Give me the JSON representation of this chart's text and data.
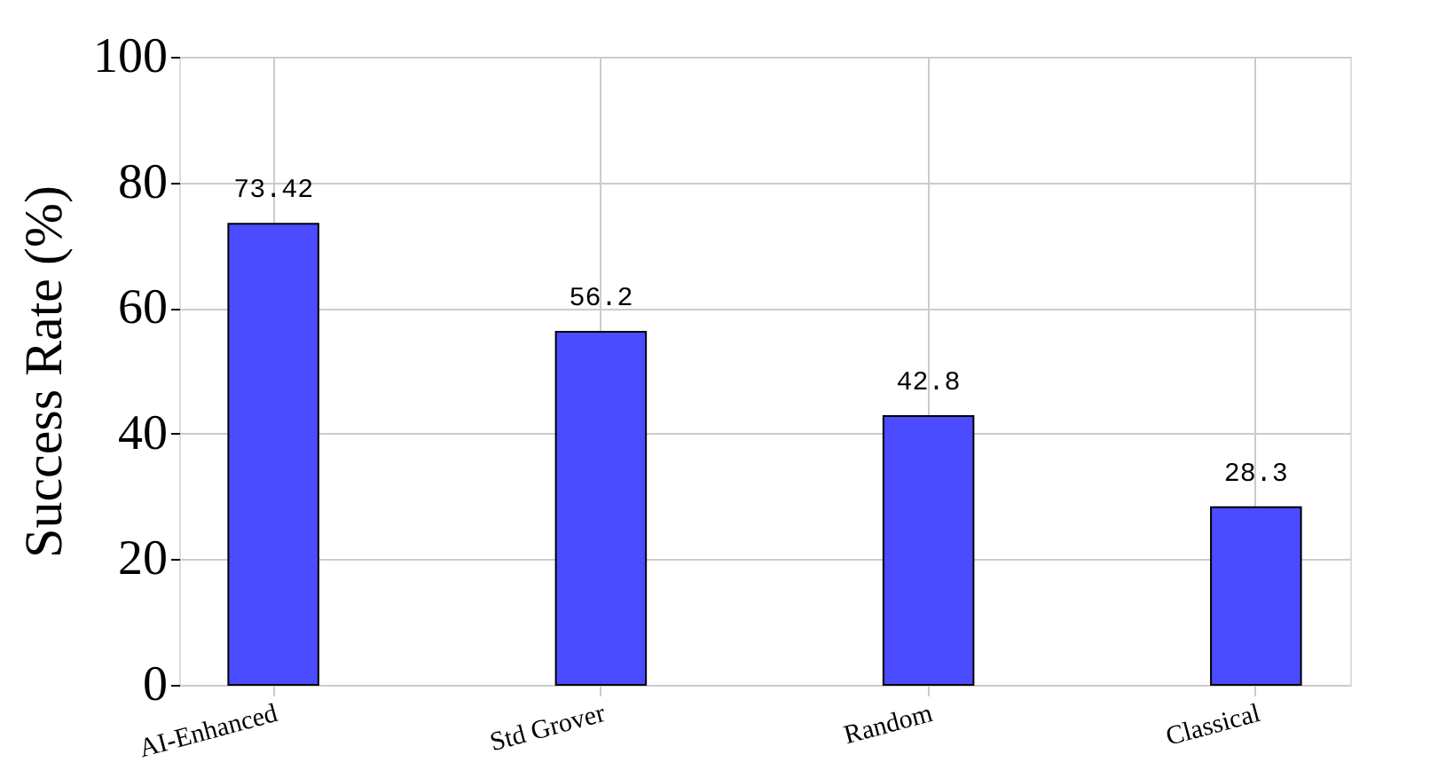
{
  "chart_data": {
    "type": "bar",
    "ylabel": "Success Rate (%)",
    "categories": [
      "AI-Enhanced",
      "Std Grover",
      "Random",
      "Classical"
    ],
    "values": [
      73.42,
      56.2,
      42.8,
      28.3
    ],
    "color": "#4b4bff",
    "ylim": [
      0,
      100
    ],
    "yticks": [
      0,
      20,
      40,
      60,
      80,
      100
    ],
    "grid": true,
    "data_labels": true
  }
}
